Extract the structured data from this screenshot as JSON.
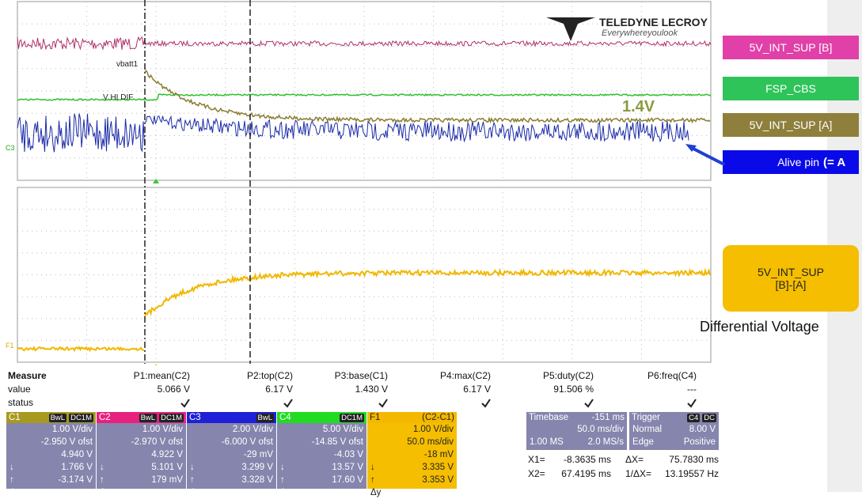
{
  "logo": {
    "brand": "TELEDYNE LECROY",
    "tagline": "Everywhereyoulook"
  },
  "trace_labels": [
    "vbatt1",
    "V HI DIF",
    "C3",
    "F1"
  ],
  "annotation": "1.4V",
  "legend": [
    "5V_INT_SUP [B]",
    "FSP_CBS",
    "5V_INT_SUP [A]",
    "Alive pin",
    "5V_INT_SUP [B]-[A]"
  ],
  "arrow_note": "(= A",
  "diff_note": "Differential Voltage",
  "measure": {
    "title": "Measure",
    "headers": [
      "P1:mean(C2)",
      "P2:top(C2)",
      "P3:base(C1)",
      "P4:max(C2)",
      "P5:duty(C2)",
      "P6:freq(C4)"
    ],
    "value_label": "value",
    "values": [
      "5.066 V",
      "6.17 V",
      "1.430 V",
      "6.17 V",
      "91.506 %",
      "---"
    ],
    "status_label": "status"
  },
  "row_symbols": [
    "↓",
    "↑",
    "Δy"
  ],
  "channels": [
    {
      "name": "C1",
      "tags": [
        "BwL",
        "DC1M"
      ],
      "rows": [
        "1.00 V/div",
        "-2.950 V ofst",
        "4.940 V",
        "1.766 V",
        "-3.174 V"
      ]
    },
    {
      "name": "C2",
      "tags": [
        "BwL",
        "DC1M"
      ],
      "rows": [
        "1.00 V/div",
        "-2.970 V ofst",
        "4.922 V",
        "5.101 V",
        "179 mV"
      ]
    },
    {
      "name": "C3",
      "tags": [
        "BwL"
      ],
      "rows": [
        "2.00 V/div",
        "-6.000 V ofst",
        "-29 mV",
        "3.299 V",
        "3.328 V"
      ]
    },
    {
      "name": "C4",
      "tags": [
        "DC1M"
      ],
      "rows": [
        "5.00 V/div",
        "-14.85 V ofst",
        "-4.03 V",
        "13.57 V",
        "17.60 V"
      ]
    },
    {
      "name": "F1",
      "tags": [
        "(C2-C1)"
      ],
      "rows": [
        "1.00 V/div",
        "50.0 ms/div",
        "-18 mV",
        "3.335 V",
        "3.353 V"
      ]
    }
  ],
  "timebase": {
    "label": "Timebase",
    "delay": "-151 ms",
    "scale": "50.0 ms/div",
    "points": "1.00 MS",
    "rate": "2.0 MS/s"
  },
  "trigger": {
    "label": "Trigger",
    "tags": [
      "C4",
      "DC"
    ],
    "mode": "Normal",
    "level": "8.00 V",
    "kind": "Edge",
    "slope": "Positive"
  },
  "cursors": [
    [
      "X1=",
      "-8.3635 ms",
      "ΔX=",
      "75.7830 ms"
    ],
    [
      "X2=",
      "67.4195 ms",
      "1/ΔX=",
      "13.19557 Hz"
    ]
  ]
}
